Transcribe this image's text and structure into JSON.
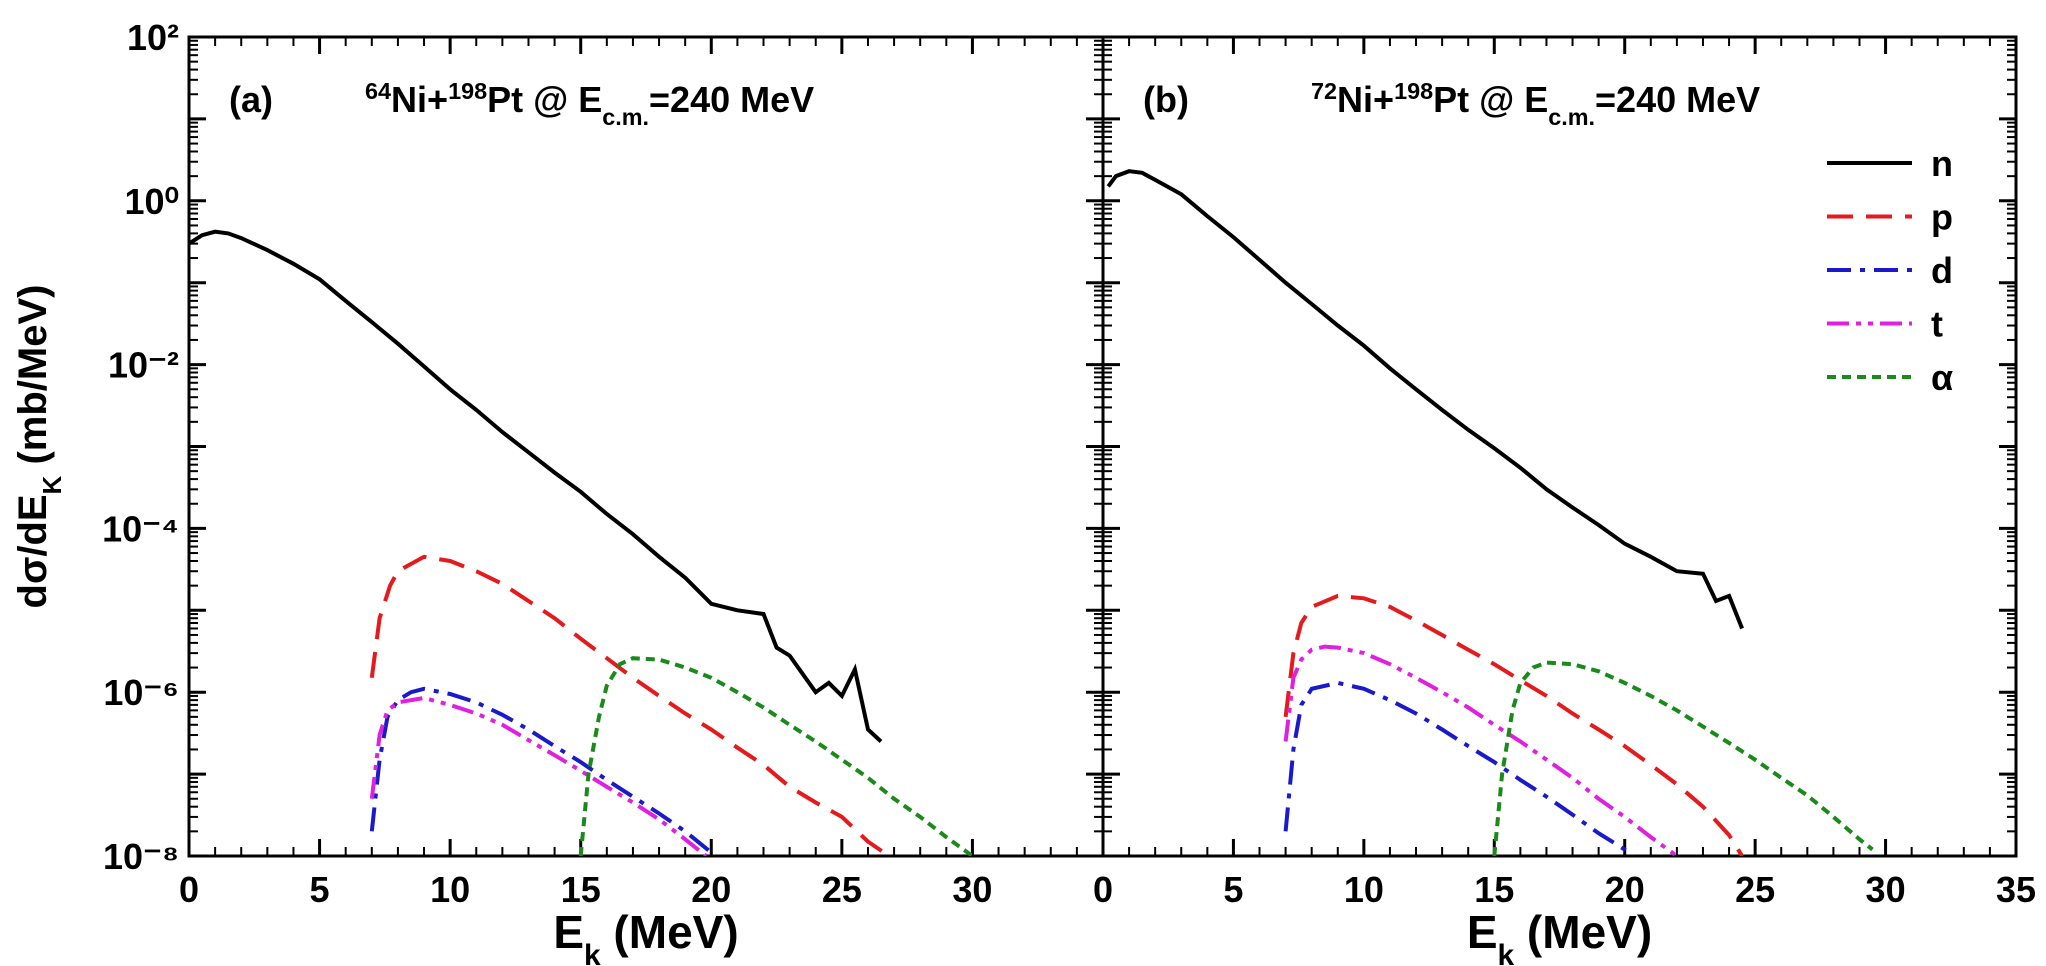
{
  "chart_data": [
    {
      "type": "line",
      "panel_label": "(a)",
      "title": [
        {
          "text": "64",
          "style": "sup"
        },
        {
          "text": "Ni+"
        },
        {
          "text": "198",
          "style": "sup"
        },
        {
          "text": "Pt @ E"
        },
        {
          "text": "c.m.",
          "style": "sub"
        },
        {
          "text": "=240 MeV"
        }
      ],
      "ylabel": [
        {
          "text": "dσ/dE"
        },
        {
          "text": "K",
          "style": "sub"
        },
        {
          "text": " (mb/MeV)"
        }
      ],
      "xlabel": [
        {
          "text": "E"
        },
        {
          "text": "k",
          "style": "sub"
        },
        {
          "text": " (MeV)"
        }
      ],
      "xlim": [
        0,
        35
      ],
      "xticks": [
        0,
        5,
        10,
        15,
        20,
        25,
        30
      ],
      "ylim": [
        1e-08,
        100
      ],
      "yscale": "log",
      "show_ytick_labels": true,
      "yticks": [
        {
          "value": 100,
          "label": "10²"
        },
        {
          "value": 1,
          "label": "10⁰"
        },
        {
          "value": 0.01,
          "label": "10⁻²"
        },
        {
          "value": 0.0001,
          "label": "10⁻⁴"
        },
        {
          "value": 1e-06,
          "label": "10⁻⁶"
        },
        {
          "value": 1e-08,
          "label": "10⁻⁸"
        }
      ],
      "legend": false,
      "series": [
        {
          "name": "n",
          "color": "#000000",
          "linestyle": "solid",
          "x": [
            0,
            0.5,
            1,
            1.5,
            2,
            3,
            4,
            5,
            6,
            7,
            8,
            9,
            10,
            11,
            12,
            13,
            14,
            15,
            16,
            17,
            18,
            19,
            20,
            21,
            22,
            22.5,
            23,
            24,
            24.5,
            25,
            25.5,
            26,
            26.5
          ],
          "values": [
            0.3,
            0.38,
            0.42,
            0.4,
            0.35,
            0.25,
            0.17,
            0.11,
            0.06,
            0.033,
            0.018,
            0.0095,
            0.005,
            0.0028,
            0.0015,
            0.00085,
            0.00048,
            0.00028,
            0.00015,
            8.5e-05,
            4.5e-05,
            2.5e-05,
            1.2e-05,
            1e-05,
            9e-06,
            3.5e-06,
            2.8e-06,
            1e-06,
            1.3e-06,
            9e-07,
            1.9e-06,
            3.5e-07,
            2.5e-07
          ]
        },
        {
          "name": "p",
          "color": "#e41a1c",
          "linestyle": "dashed",
          "x": [
            7,
            7.3,
            7.7,
            8,
            9,
            10,
            11,
            12,
            13,
            14,
            15,
            16,
            17,
            18,
            19,
            20,
            21,
            22,
            23,
            24,
            25,
            26,
            26.8
          ],
          "values": [
            1.5e-06,
            8e-06,
            2e-05,
            3e-05,
            4.5e-05,
            4e-05,
            3e-05,
            2.1e-05,
            1.3e-05,
            8e-06,
            4.5e-06,
            2.6e-06,
            1.5e-06,
            9e-07,
            5.5e-07,
            3.5e-07,
            2.1e-07,
            1.3e-07,
            7e-08,
            4.5e-08,
            3e-08,
            1.5e-08,
            1e-08
          ]
        },
        {
          "name": "d",
          "color": "#1a1acc",
          "linestyle": "dashdot",
          "x": [
            7,
            7.3,
            7.6,
            8,
            8.5,
            9,
            10,
            11,
            12,
            13,
            14,
            15,
            16,
            17,
            18,
            19,
            20
          ],
          "values": [
            2e-08,
            1.5e-07,
            5e-07,
            8e-07,
            1e-06,
            1.1e-06,
            9.5e-07,
            7.5e-07,
            5.3e-07,
            3.5e-07,
            2.2e-07,
            1.4e-07,
            8.5e-08,
            5.3e-08,
            3.3e-08,
            2e-08,
            1.1e-08
          ]
        },
        {
          "name": "t",
          "color": "#e020e0",
          "linestyle": "dashdotdot",
          "x": [
            7,
            7.3,
            7.6,
            8,
            9,
            10,
            11,
            12,
            13,
            14,
            15,
            16,
            17,
            18,
            19,
            19.8
          ],
          "values": [
            5e-08,
            3e-07,
            6e-07,
            7.5e-07,
            8.5e-07,
            7e-07,
            5.5e-07,
            4e-07,
            2.6e-07,
            1.7e-07,
            1.1e-07,
            7e-08,
            4.5e-08,
            2.8e-08,
            1.6e-08,
            1e-08
          ]
        },
        {
          "name": "α",
          "color": "#1a8a1a",
          "linestyle": "dotted",
          "x": [
            15,
            15.3,
            15.7,
            16,
            16.5,
            17,
            18,
            19,
            20,
            21,
            22,
            23,
            24,
            25,
            26,
            27,
            28,
            29,
            30
          ],
          "values": [
            1e-08,
            1e-07,
            5e-07,
            1.2e-06,
            2.2e-06,
            2.6e-06,
            2.5e-06,
            2e-06,
            1.5e-06,
            1e-06,
            6.5e-07,
            4e-07,
            2.5e-07,
            1.5e-07,
            9e-08,
            5e-08,
            3e-08,
            1.7e-08,
            1e-08
          ]
        }
      ]
    },
    {
      "type": "line",
      "panel_label": "(b)",
      "title": [
        {
          "text": "72",
          "style": "sup"
        },
        {
          "text": "Ni+"
        },
        {
          "text": "198",
          "style": "sup"
        },
        {
          "text": "Pt @ E"
        },
        {
          "text": "c.m.",
          "style": "sub"
        },
        {
          "text": "=240 MeV"
        }
      ],
      "xlabel": [
        {
          "text": "E"
        },
        {
          "text": "k",
          "style": "sub"
        },
        {
          "text": " (MeV)"
        }
      ],
      "xlim": [
        0,
        35
      ],
      "xticks": [
        0,
        5,
        10,
        15,
        20,
        25,
        30,
        35
      ],
      "ylim": [
        1e-08,
        100
      ],
      "yscale": "log",
      "show_ytick_labels": false,
      "yticks": [
        100,
        1,
        0.01,
        0.0001,
        1e-06,
        1e-08
      ],
      "legend": "upper right",
      "series": [
        {
          "name": "n",
          "color": "#000000",
          "linestyle": "solid",
          "x": [
            0.2,
            0.5,
            1,
            1.5,
            2,
            3,
            4,
            5,
            6,
            7,
            8,
            9,
            10,
            11,
            12,
            13,
            14,
            15,
            16,
            17,
            18,
            19,
            20,
            21,
            22,
            23,
            23.5,
            24,
            24.5
          ],
          "values": [
            1.5,
            2,
            2.3,
            2.2,
            1.8,
            1.2,
            0.65,
            0.36,
            0.19,
            0.1,
            0.055,
            0.03,
            0.017,
            0.009,
            0.005,
            0.0028,
            0.0016,
            0.00095,
            0.00055,
            0.0003,
            0.00018,
            0.00011,
            6.5e-05,
            4.5e-05,
            3e-05,
            2.8e-05,
            1.3e-05,
            1.5e-05,
            6e-06
          ]
        },
        {
          "name": "p",
          "color": "#e41a1c",
          "linestyle": "dashed",
          "x": [
            7,
            7.3,
            7.6,
            8,
            9,
            10,
            11,
            12,
            13,
            14,
            15,
            16,
            17,
            18,
            19,
            20,
            21,
            22,
            23,
            24,
            24.5
          ],
          "values": [
            5e-07,
            3e-06,
            7e-06,
            1.1e-05,
            1.5e-05,
            1.4e-05,
            1.1e-05,
            7.5e-06,
            5e-06,
            3.3e-06,
            2.2e-06,
            1.4e-06,
            9e-07,
            5.5e-07,
            3.5e-07,
            2.2e-07,
            1.3e-07,
            7.5e-08,
            4e-08,
            1.8e-08,
            1e-08
          ]
        },
        {
          "name": "d",
          "color": "#1a1acc",
          "linestyle": "dashdot",
          "x": [
            7,
            7.3,
            7.6,
            8,
            9,
            10,
            11,
            12,
            13,
            14,
            15,
            16,
            17,
            18,
            19,
            20,
            20.3
          ],
          "values": [
            2e-08,
            2e-07,
            7e-07,
            1.1e-06,
            1.3e-06,
            1.1e-06,
            8e-07,
            5.5e-07,
            3.5e-07,
            2.2e-07,
            1.4e-07,
            8.5e-08,
            5.3e-08,
            3.2e-08,
            1.9e-08,
            1.2e-08,
            1e-08
          ]
        },
        {
          "name": "t",
          "color": "#e020e0",
          "linestyle": "dashdotdot",
          "x": [
            7,
            7.3,
            7.6,
            8,
            8.5,
            9,
            10,
            11,
            12,
            13,
            14,
            15,
            16,
            17,
            18,
            19,
            20,
            21,
            22
          ],
          "values": [
            2.5e-07,
            1.5e-06,
            2.5e-06,
            3.3e-06,
            3.6e-06,
            3.5e-06,
            3e-06,
            2.2e-06,
            1.5e-06,
            1e-06,
            6.5e-07,
            4e-07,
            2.5e-07,
            1.5e-07,
            9e-08,
            5e-08,
            3e-08,
            1.7e-08,
            1e-08
          ]
        },
        {
          "name": "α",
          "color": "#1a8a1a",
          "linestyle": "dotted",
          "x": [
            15,
            15.3,
            15.7,
            16,
            16.5,
            17,
            18,
            19,
            20,
            21,
            22,
            23,
            24,
            25,
            26,
            27,
            28,
            29,
            29.5
          ],
          "values": [
            1e-08,
            1e-07,
            6e-07,
            1.3e-06,
            2e-06,
            2.3e-06,
            2.2e-06,
            1.8e-06,
            1.3e-06,
            9e-07,
            6e-07,
            3.8e-07,
            2.4e-07,
            1.5e-07,
            9e-08,
            5.5e-08,
            3e-08,
            1.6e-08,
            1.2e-08
          ]
        }
      ]
    }
  ]
}
